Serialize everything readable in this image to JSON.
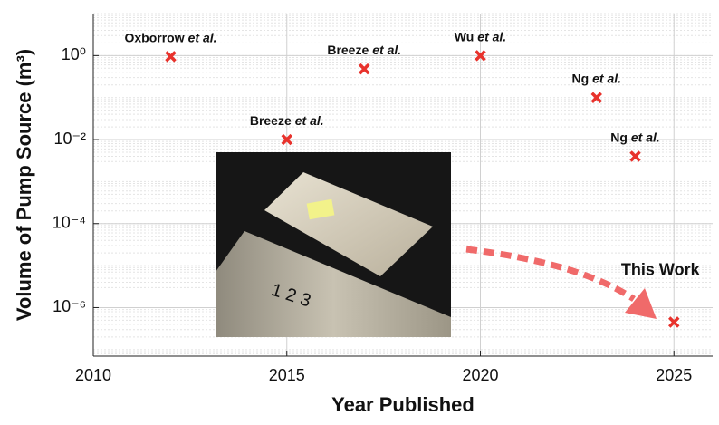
{
  "chart_data": {
    "type": "scatter",
    "x_label": "Year Published",
    "y_label": "Volume of Pump Source (m³)",
    "x": [
      2012,
      2015,
      2017,
      2020,
      2023,
      2024,
      2025
    ],
    "values": [
      0.95,
      0.01,
      0.48,
      1.0,
      0.1,
      0.004,
      4.5e-07
    ],
    "point_labels": [
      {
        "author": "Oxborrow",
        "italic": "et al."
      },
      {
        "author": "Breeze",
        "italic": "et al."
      },
      {
        "author": "Breeze",
        "italic": "et al."
      },
      {
        "author": "Wu",
        "italic": "et al."
      },
      {
        "author": "Ng",
        "italic": "et al."
      },
      {
        "author": "Ng",
        "italic": "et al."
      },
      null
    ],
    "annotation": "This Work",
    "color": "#e8322c",
    "xlim": [
      2010,
      2026
    ],
    "xticks": [
      2010,
      2015,
      2020,
      2025
    ],
    "ylim": [
      7e-08,
      10
    ],
    "log_y": true,
    "yticks": [
      {
        "value": 1,
        "label": "10⁰"
      },
      {
        "value": 0.01,
        "label": "10⁻²"
      },
      {
        "value": 0.0001,
        "label": "10⁻⁴"
      },
      {
        "value": 1e-06,
        "label": "10⁻⁶"
      }
    ],
    "grid": true,
    "minor_grid": true
  }
}
